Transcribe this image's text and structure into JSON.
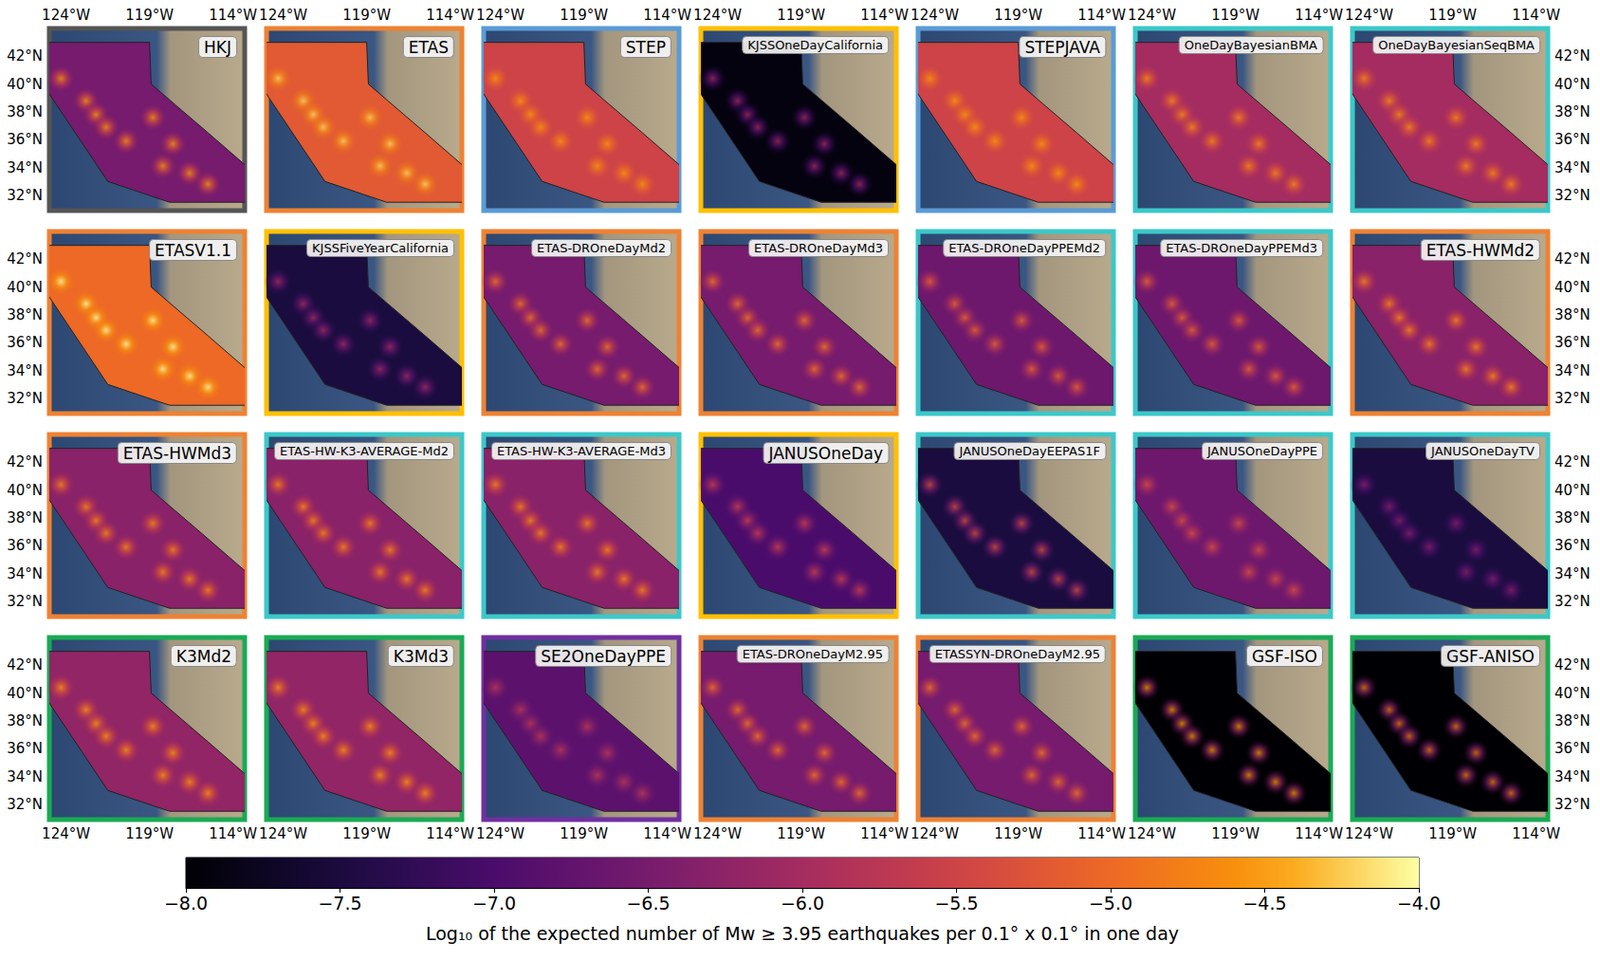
{
  "chart_data": {
    "type": "map_grid",
    "xlim": [
      -125.0,
      -113.3
    ],
    "ylim": [
      30.9,
      44.0
    ],
    "xticks": [
      {
        "value": -124,
        "label": "124°W"
      },
      {
        "value": -119,
        "label": "119°W"
      },
      {
        "value": -114,
        "label": "114°W"
      }
    ],
    "yticks": [
      {
        "value": 32,
        "label": "32°N"
      },
      {
        "value": 34,
        "label": "34°N"
      },
      {
        "value": 36,
        "label": "36°N"
      },
      {
        "value": 38,
        "label": "38°N"
      },
      {
        "value": 40,
        "label": "40°N"
      },
      {
        "value": 42,
        "label": "42°N"
      }
    ],
    "region": [
      [
        -125.4,
        43.0
      ],
      [
        -119.0,
        43.0
      ],
      [
        -118.9,
        40.0
      ],
      [
        -115.5,
        36.5
      ],
      [
        -113.1,
        34.0
      ],
      [
        -113.1,
        31.5
      ],
      [
        -117.8,
        31.5
      ],
      [
        -121.5,
        33.0
      ],
      [
        -125.4,
        40.0
      ]
    ],
    "hotspots": [
      [
        -124.3,
        40.4
      ],
      [
        -122.8,
        38.8
      ],
      [
        -122.2,
        37.8
      ],
      [
        -121.6,
        36.9
      ],
      [
        -120.4,
        35.9
      ],
      [
        -118.8,
        37.6
      ],
      [
        -117.6,
        35.7
      ],
      [
        -118.2,
        34.1
      ],
      [
        -116.6,
        33.6
      ],
      [
        -115.5,
        32.8
      ]
    ],
    "colorbar": {
      "title": "Log₁₀ of the expected number of Mw ≥ 3.95 earthquakes per 0.1° x 0.1° in one day",
      "range": [
        -8.0,
        -4.0
      ],
      "ticks": [
        {
          "value": -8.0,
          "label": "−8.0"
        },
        {
          "value": -7.5,
          "label": "−7.5"
        },
        {
          "value": -7.0,
          "label": "−7.0"
        },
        {
          "value": -6.5,
          "label": "−6.5"
        },
        {
          "value": -6.0,
          "label": "−6.0"
        },
        {
          "value": -5.5,
          "label": "−5.5"
        },
        {
          "value": -5.0,
          "label": "−5.0"
        },
        {
          "value": -4.5,
          "label": "−4.5"
        },
        {
          "value": -4.0,
          "label": "−4.0"
        }
      ]
    },
    "panels": [
      {
        "name": "HKJ",
        "color": "#555555",
        "background": -6.5,
        "peak": -4.5
      },
      {
        "name": "ETAS",
        "color": "#ee8233",
        "background": -5.2,
        "peak": -4.2
      },
      {
        "name": "STEP",
        "color": "#5b9bd5",
        "background": -5.5,
        "peak": -4.5
      },
      {
        "name": "KJSSOneDayCalifornia",
        "color": "#ffc000",
        "background": -7.9,
        "peak": -6.0
      },
      {
        "name": "STEPJAVA",
        "color": "#5b9bd5",
        "background": -5.5,
        "peak": -4.5
      },
      {
        "name": "OneDayBayesianBMA",
        "color": "#3cc8c8",
        "background": -6.0,
        "peak": -4.6
      },
      {
        "name": "OneDayBayesianSeqBMA",
        "color": "#3cc8c8",
        "background": -6.0,
        "peak": -4.6
      },
      {
        "name": "ETASV1.1",
        "color": "#ee8233",
        "background": -5.0,
        "peak": -4.0
      },
      {
        "name": "KJSSFiveYearCalifornia",
        "color": "#ffc000",
        "background": -7.5,
        "peak": -6.0
      },
      {
        "name": "ETAS-DROneDayMd2",
        "color": "#ee8233",
        "background": -6.5,
        "peak": -4.8
      },
      {
        "name": "ETAS-DROneDayMd3",
        "color": "#ee8233",
        "background": -6.5,
        "peak": -4.8
      },
      {
        "name": "ETAS-DROneDayPPEMd2",
        "color": "#3cc8c8",
        "background": -6.6,
        "peak": -5.0
      },
      {
        "name": "ETAS-DROneDayPPEMd3",
        "color": "#3cc8c8",
        "background": -6.6,
        "peak": -5.0
      },
      {
        "name": "ETAS-HWMd2",
        "color": "#ee8233",
        "background": -6.3,
        "peak": -4.6
      },
      {
        "name": "ETAS-HWMd3",
        "color": "#ee8233",
        "background": -6.3,
        "peak": -4.6
      },
      {
        "name": "ETAS-HW-K3-AVERAGE-Md2",
        "color": "#3cc8c8",
        "background": -6.3,
        "peak": -4.6
      },
      {
        "name": "ETAS-HW-K3-AVERAGE-Md3",
        "color": "#3cc8c8",
        "background": -6.3,
        "peak": -4.6
      },
      {
        "name": "JANUSOneDay",
        "color": "#ffc000",
        "background": -7.0,
        "peak": -5.5
      },
      {
        "name": "JANUSOneDayEEPAS1F",
        "color": "#3cc8c8",
        "background": -7.5,
        "peak": -5.3
      },
      {
        "name": "JANUSOneDayPPE",
        "color": "#3cc8c8",
        "background": -6.6,
        "peak": -5.3
      },
      {
        "name": "JANUSOneDayTV",
        "color": "#3cc8c8",
        "background": -7.5,
        "peak": -6.3
      },
      {
        "name": "K3Md2",
        "color": "#1aaa55",
        "background": -6.2,
        "peak": -4.5
      },
      {
        "name": "K3Md3",
        "color": "#1aaa55",
        "background": -6.2,
        "peak": -4.5
      },
      {
        "name": "SE2OneDayPPE",
        "color": "#7030a0",
        "background": -6.8,
        "peak": -5.7
      },
      {
        "name": "ETAS-DROneDayM2.95",
        "color": "#ee8233",
        "background": -6.5,
        "peak": -4.8
      },
      {
        "name": "ETASSYN-DROneDayM2.95",
        "color": "#ee8233",
        "background": -6.5,
        "peak": -4.8
      },
      {
        "name": "GSF-ISO",
        "color": "#1aaa55",
        "background": -8.0,
        "peak": -4.5
      },
      {
        "name": "GSF-ANISO",
        "color": "#1aaa55",
        "background": -8.0,
        "peak": -4.8
      }
    ]
  }
}
